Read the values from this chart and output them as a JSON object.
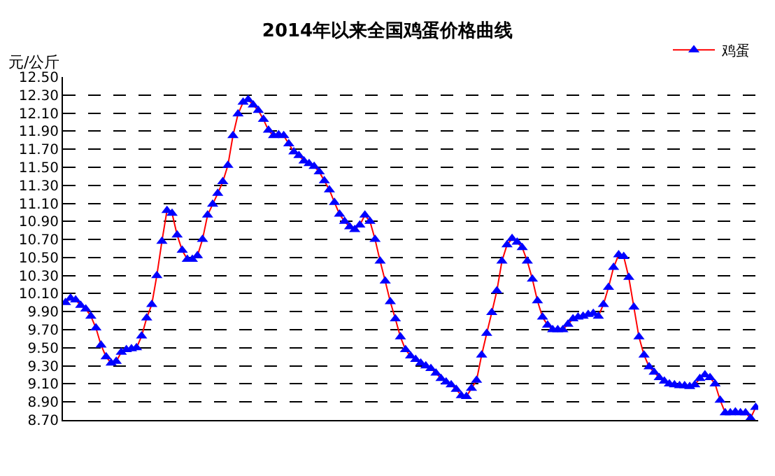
{
  "chart_data": {
    "type": "line",
    "title": "2014年以来全国鸡蛋价格曲线",
    "ylabel": "元/公斤",
    "categories": [
      null,
      null,
      null,
      null,
      null,
      null,
      null,
      null,
      null,
      null,
      null,
      null,
      null,
      null,
      null,
      null,
      null,
      null,
      null,
      null,
      null,
      null,
      null,
      null,
      null,
      null,
      null,
      null,
      null,
      null,
      null,
      null,
      null,
      null,
      null,
      null,
      null,
      null,
      null,
      null,
      null,
      null,
      null,
      null,
      null,
      null,
      null,
      null,
      null,
      null,
      null,
      null,
      null,
      null,
      null,
      null,
      null,
      null,
      null,
      null,
      null,
      null,
      null,
      null,
      null,
      null,
      null,
      null,
      null,
      null,
      null,
      null,
      null,
      null,
      null,
      null,
      null,
      null,
      null,
      null,
      null,
      null,
      null,
      null,
      null,
      null,
      null,
      null,
      null,
      null,
      null,
      null,
      null,
      null,
      null,
      null,
      null,
      null,
      null,
      null,
      null,
      null,
      null,
      null,
      null,
      null,
      null,
      null,
      null,
      null,
      null,
      null,
      null,
      null,
      null,
      null,
      null,
      null,
      null,
      null,
      null,
      null,
      null,
      null,
      null,
      null,
      null,
      null,
      null,
      null,
      null,
      null,
      null,
      null,
      null,
      null,
      null
    ],
    "series": [
      {
        "name": "鸡蛋",
        "color": "#0000ff",
        "values": [
          10.0,
          10.05,
          10.03,
          9.97,
          9.93,
          9.85,
          9.72,
          9.53,
          9.4,
          9.33,
          9.35,
          9.45,
          9.48,
          9.49,
          9.5,
          9.63,
          9.83,
          9.98,
          10.3,
          10.68,
          11.02,
          10.99,
          10.75,
          10.58,
          10.48,
          10.48,
          10.52,
          10.7,
          10.97,
          11.09,
          11.21,
          11.34,
          11.52,
          11.85,
          12.09,
          12.22,
          12.25,
          12.19,
          12.13,
          12.03,
          11.91,
          11.85,
          11.86,
          11.85,
          11.76,
          11.67,
          11.63,
          11.57,
          11.54,
          11.51,
          11.45,
          11.35,
          11.25,
          11.11,
          10.98,
          10.9,
          10.84,
          10.81,
          10.86,
          10.97,
          10.9,
          10.7,
          10.46,
          10.24,
          10.01,
          9.82,
          9.62,
          9.48,
          9.41,
          9.37,
          9.33,
          9.3,
          9.27,
          9.22,
          9.16,
          9.12,
          9.09,
          9.04,
          8.97,
          8.96,
          9.05,
          9.14,
          9.42,
          9.66,
          9.89,
          10.13,
          10.46,
          10.64,
          10.71,
          10.67,
          10.61,
          10.46,
          10.26,
          10.02,
          9.84,
          9.75,
          9.7,
          9.7,
          9.7,
          9.76,
          9.82,
          9.84,
          9.85,
          9.87,
          9.88,
          9.85,
          9.98,
          10.17,
          10.39,
          10.53,
          10.51,
          10.28,
          9.95,
          9.62,
          9.42,
          9.29,
          9.23,
          9.17,
          9.13,
          9.1,
          9.09,
          9.08,
          9.08,
          9.07,
          9.09,
          9.16,
          9.2,
          9.17,
          9.1,
          8.92,
          8.78,
          8.78,
          8.79,
          8.78,
          8.78,
          8.72,
          8.84
        ]
      }
    ],
    "ylim": [
      8.7,
      12.5
    ],
    "yticks": [
      {
        "value": 8.7,
        "label": "8.70"
      },
      {
        "value": 8.9,
        "label": "8.90"
      },
      {
        "value": 9.1,
        "label": "9.10"
      },
      {
        "value": 9.3,
        "label": "9.30"
      },
      {
        "value": 9.5,
        "label": "9.50"
      },
      {
        "value": 9.7,
        "label": "9.70"
      },
      {
        "value": 9.9,
        "label": "9.90"
      },
      {
        "value": 10.1,
        "label": "10.10"
      },
      {
        "value": 10.3,
        "label": "10.30"
      },
      {
        "value": 10.5,
        "label": "10.50"
      },
      {
        "value": 10.7,
        "label": "10.70"
      },
      {
        "value": 10.9,
        "label": "10.90"
      },
      {
        "value": 11.1,
        "label": "11.10"
      },
      {
        "value": 11.3,
        "label": "11.30"
      },
      {
        "value": 11.5,
        "label": "11.50"
      },
      {
        "value": 11.7,
        "label": "11.70"
      },
      {
        "value": 11.9,
        "label": "11.90"
      },
      {
        "value": 12.1,
        "label": "12.10"
      },
      {
        "value": 12.3,
        "label": "12.30"
      },
      {
        "value": 12.5,
        "label": "12.50"
      }
    ],
    "grid": "y",
    "legend": "top right",
    "marker": "triangle",
    "line_style": "solid",
    "tick_labels": "y"
  }
}
